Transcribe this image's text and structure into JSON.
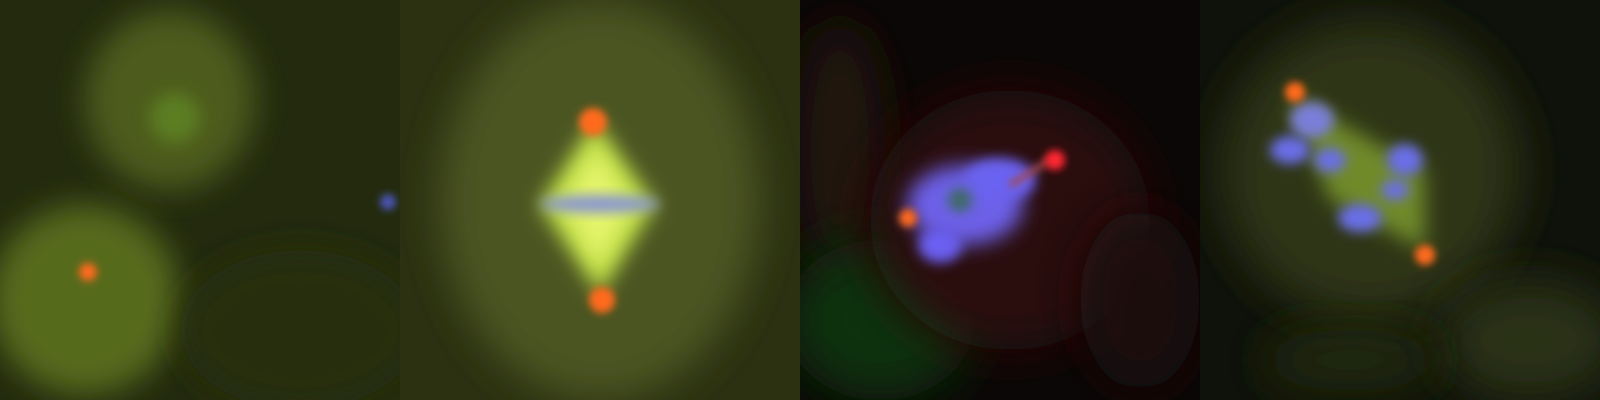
{
  "figure": {
    "panels": [
      {
        "id": "panel-1",
        "stage": "interphase-cells",
        "background": "#232a0e"
      },
      {
        "id": "panel-2",
        "stage": "metaphase-spindle",
        "background": "#2b3111"
      },
      {
        "id": "panel-3",
        "stage": "prometaphase-chromosomes",
        "background": "#0b0706"
      },
      {
        "id": "panel-4",
        "stage": "disorganized-spindle",
        "background": "#0f120a"
      }
    ],
    "channels": {
      "dna": "#6b63ff",
      "microtubules": "#b6e83a",
      "centrosome": "#ff4a2a",
      "cytoplasm": "#6c7a20"
    }
  }
}
